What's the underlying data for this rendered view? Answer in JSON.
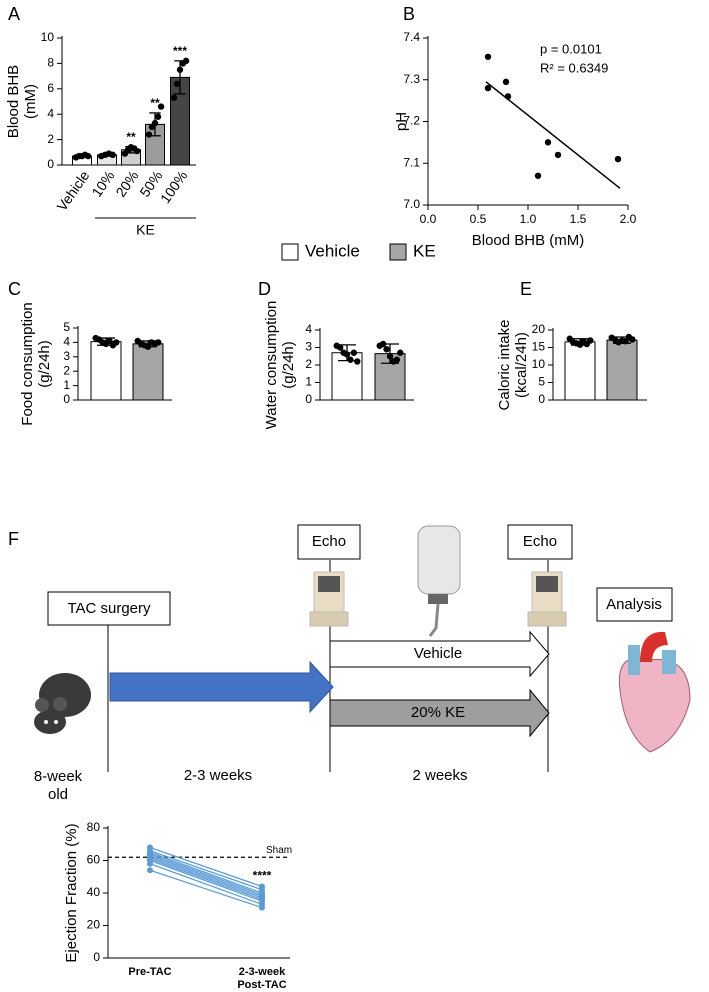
{
  "chart_data": [
    {
      "type": "bar",
      "label": "A",
      "y_label": [
        "Blood BHB",
        "(mM)"
      ],
      "categories": [
        "Vehicle",
        "10%",
        "20%",
        "50%",
        "100%"
      ],
      "group_label": "KE",
      "values": [
        0.7,
        0.8,
        1.2,
        3.2,
        6.9
      ],
      "errors": [
        0.1,
        0.1,
        0.25,
        0.9,
        1.3
      ],
      "points": [
        [
          0.6,
          0.7,
          0.7,
          0.8,
          0.7
        ],
        [
          0.7,
          0.8,
          0.9,
          0.8
        ],
        [
          0.9,
          1.2,
          1.4,
          1.3,
          1.1
        ],
        [
          2.4,
          3.0,
          3.3,
          3.8,
          4.6
        ],
        [
          5.3,
          6.4,
          7.5,
          8.0,
          8.2
        ]
      ],
      "annotations": [
        null,
        null,
        "**",
        "**",
        "***"
      ],
      "colors": [
        "#ffffff",
        "#e6e6e6",
        "#cfcfcf",
        "#9c9c9c",
        "#454545"
      ],
      "ylim": [
        0,
        10
      ],
      "yticks": [
        0,
        2,
        4,
        6,
        8,
        10
      ]
    },
    {
      "type": "scatter",
      "label": "B",
      "y_label": [
        "pH"
      ],
      "x_label": "Blood BHB (mM)",
      "x": [
        0.6,
        0.6,
        0.78,
        0.8,
        1.1,
        1.2,
        1.3,
        1.9
      ],
      "y": [
        7.355,
        7.28,
        7.295,
        7.26,
        7.07,
        7.15,
        7.12,
        7.11
      ],
      "fit_x": [
        0.58,
        1.92
      ],
      "fit_y": [
        7.295,
        7.04
      ],
      "annotations": [
        "p = 0.0101",
        "R² = 0.6349"
      ],
      "xlim": [
        0,
        2
      ],
      "xticks": [
        {
          "value": 0,
          "label": "0.0"
        },
        {
          "value": 0.5,
          "label": "0.5"
        },
        {
          "value": 1,
          "label": "1.0"
        },
        {
          "value": 1.5,
          "label": "1.5"
        },
        {
          "value": 2,
          "label": "2.0"
        }
      ],
      "ylim": [
        7.0,
        7.4
      ],
      "yticks": [
        {
          "value": 7.0,
          "label": "7.0"
        },
        7.1,
        7.2,
        7.3,
        7.4
      ]
    },
    {
      "type": "bar",
      "label": "C",
      "y_label": [
        "Food consumption",
        "(g/24h)"
      ],
      "values": [
        4.05,
        3.9
      ],
      "errors": [
        0.25,
        0.2
      ],
      "points": [
        [
          4.3,
          4.2,
          4.0,
          3.9,
          4.1,
          3.8,
          4.0
        ],
        [
          4.1,
          3.9,
          3.8,
          3.7,
          4.0,
          3.9,
          4.0
        ]
      ],
      "ylim": [
        0,
        5
      ],
      "yticks": [
        0,
        1,
        2,
        3,
        4,
        5
      ]
    },
    {
      "type": "bar",
      "label": "D",
      "y_label": [
        "Water consumption",
        "(g/24h)"
      ],
      "values": [
        2.7,
        2.65
      ],
      "errors": [
        0.45,
        0.55
      ],
      "points": [
        [
          3.1,
          3.0,
          2.7,
          2.6,
          2.3,
          2.7,
          2.2
        ],
        [
          3.1,
          3.2,
          2.9,
          2.5,
          2.2,
          2.3,
          2.7
        ]
      ],
      "ylim": [
        0,
        4
      ],
      "yticks": [
        0,
        1,
        2,
        3,
        4
      ]
    },
    {
      "type": "bar",
      "label": "E",
      "y_label": [
        "Caloric intake",
        "(kcal/24h)"
      ],
      "values": [
        16.6,
        17.1
      ],
      "errors": [
        0.9,
        0.9
      ],
      "points": [
        [
          17.5,
          16.5,
          16.2,
          15.8,
          16.8,
          16.0,
          17.0
        ],
        [
          17.8,
          17.2,
          16.5,
          17.0,
          16.8,
          18.0,
          17.3
        ]
      ],
      "ylim": [
        0,
        20
      ],
      "yticks": [
        0,
        5,
        10,
        15,
        20
      ]
    },
    {
      "type": "line",
      "y_label": [
        "Ejection Fraction (%)"
      ],
      "categories": [
        [
          "Pre-TAC"
        ],
        [
          "2-3-week",
          "Post-TAC"
        ]
      ],
      "color": "#5b9bd5",
      "series": [
        {
          "values": [
            68,
            44
          ]
        },
        {
          "values": [
            66,
            42
          ]
        },
        {
          "values": [
            65,
            40
          ]
        },
        {
          "values": [
            64,
            39
          ]
        },
        {
          "values": [
            63,
            38
          ]
        },
        {
          "values": [
            62,
            37
          ]
        },
        {
          "values": [
            61,
            36
          ]
        },
        {
          "values": [
            60,
            35
          ]
        },
        {
          "values": [
            58,
            33
          ]
        },
        {
          "values": [
            54,
            31
          ]
        }
      ],
      "reference": {
        "value": 62,
        "label": "Sham"
      },
      "annotations": [
        null,
        "****"
      ],
      "ylim": [
        0,
        80
      ],
      "yticks": [
        0,
        20,
        40,
        60,
        80
      ]
    }
  ],
  "legend": {
    "entries": [
      {
        "name": "Vehicle",
        "color": "#ffffff"
      },
      {
        "name": "KE",
        "color": "#a6a6a6"
      }
    ]
  },
  "diagram": {
    "label": "F",
    "boxes": [
      "TAC surgery",
      "Echo",
      "Echo",
      "Analysis"
    ],
    "arrows": [
      "Vehicle",
      "20% KE"
    ],
    "start_label": [
      "8-week",
      "old"
    ],
    "durations": [
      "2-3 weeks",
      "2 weeks"
    ]
  }
}
